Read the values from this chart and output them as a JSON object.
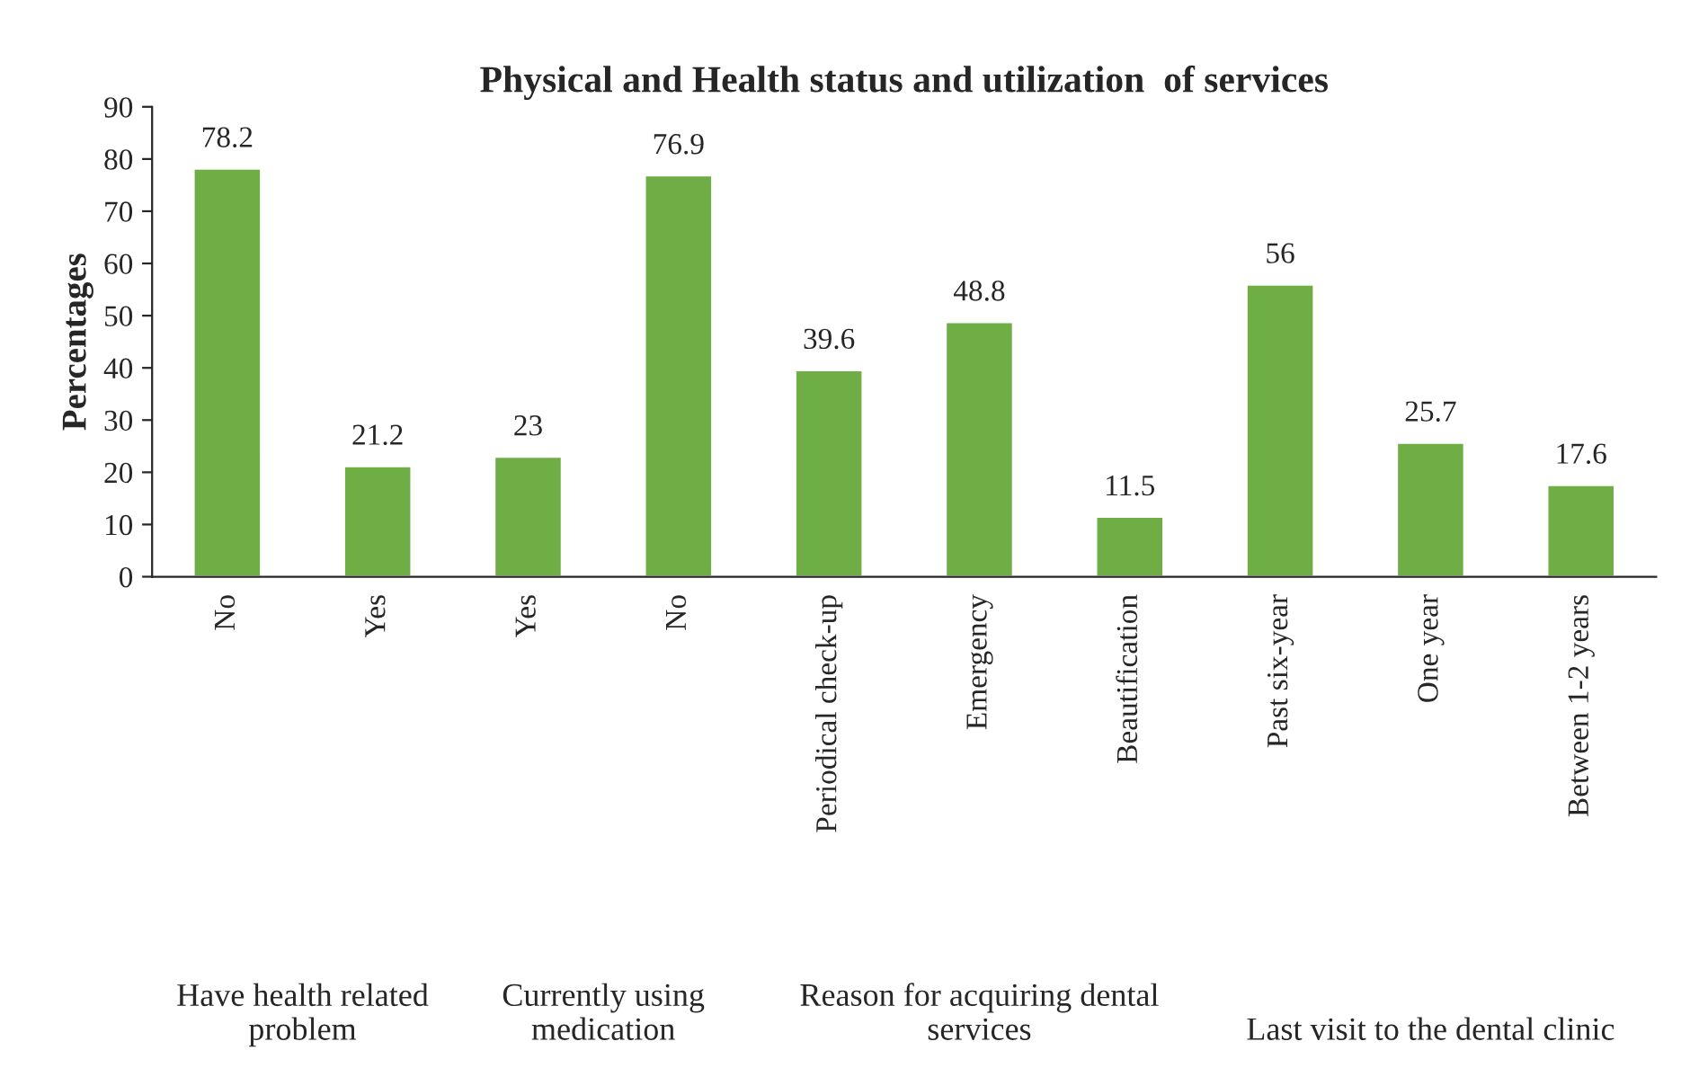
{
  "chart_data": {
    "type": "bar",
    "title": "Physical and Health status and utilization  of services",
    "ylabel": "Percentages",
    "categories": [
      "No",
      "Yes",
      "Yes",
      "No",
      "Periodical check-up",
      "Emergency",
      "Beautification",
      "Past six-year",
      "One year",
      "Between 1-2 years"
    ],
    "values": [
      78.2,
      21.2,
      23,
      76.9,
      39.6,
      48.8,
      11.5,
      56,
      25.7,
      17.6
    ],
    "color": "#6fae45",
    "ylim": [
      0,
      90
    ],
    "yticks": [
      0,
      10,
      20,
      30,
      40,
      50,
      60,
      70,
      80,
      90
    ],
    "data_labels": true,
    "grid": false,
    "legend": false,
    "annotations": [
      "Have health related\nproblem",
      "Currently using\nmedication",
      "Reason for acquiring dental\nservices",
      "Last visit to the dental clinic"
    ]
  }
}
